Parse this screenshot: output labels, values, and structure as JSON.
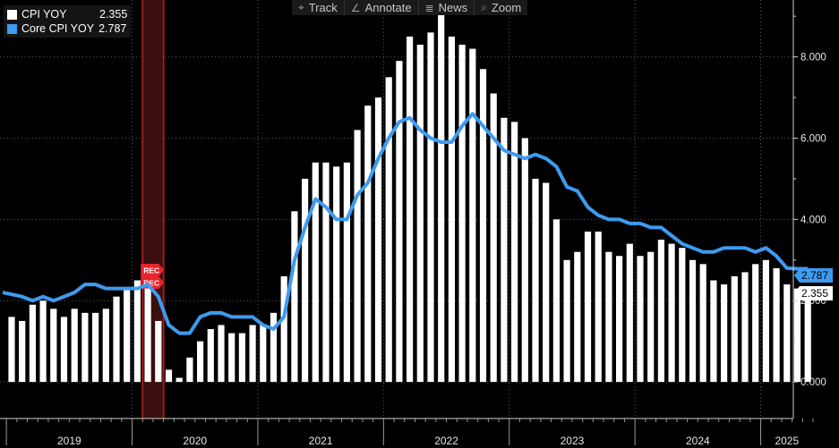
{
  "toolbar": {
    "items": [
      {
        "label": "Track",
        "icon": "crosshair-icon",
        "glyph": "⌖"
      },
      {
        "label": "Annotate",
        "icon": "pencil-icon",
        "glyph": "∠"
      },
      {
        "label": "News",
        "icon": "news-icon",
        "glyph": "≣"
      },
      {
        "label": "Zoom",
        "icon": "search-icon",
        "glyph": "⌕"
      }
    ]
  },
  "legend": [
    {
      "name": "CPI YOY",
      "value": "2.355",
      "color": "#ffffff"
    },
    {
      "name": "Core CPI YOY",
      "value": "2.787",
      "color": "#3d9bf0"
    }
  ],
  "recession": {
    "label": "REC",
    "color": "#e8242c"
  },
  "chart_data": {
    "type": "bar",
    "x": [
      "2019-01",
      "2019-02",
      "2019-03",
      "2019-04",
      "2019-05",
      "2019-06",
      "2019-07",
      "2019-08",
      "2019-09",
      "2019-10",
      "2019-11",
      "2019-12",
      "2020-01",
      "2020-02",
      "2020-03",
      "2020-04",
      "2020-05",
      "2020-06",
      "2020-07",
      "2020-08",
      "2020-09",
      "2020-10",
      "2020-11",
      "2020-12",
      "2021-01",
      "2021-02",
      "2021-03",
      "2021-04",
      "2021-05",
      "2021-06",
      "2021-07",
      "2021-08",
      "2021-09",
      "2021-10",
      "2021-11",
      "2021-12",
      "2022-01",
      "2022-02",
      "2022-03",
      "2022-04",
      "2022-05",
      "2022-06",
      "2022-07",
      "2022-08",
      "2022-09",
      "2022-10",
      "2022-11",
      "2022-12",
      "2023-01",
      "2023-02",
      "2023-03",
      "2023-04",
      "2023-05",
      "2023-06",
      "2023-07",
      "2023-08",
      "2023-09",
      "2023-10",
      "2023-11",
      "2023-12",
      "2024-01",
      "2024-02",
      "2024-03",
      "2024-04",
      "2024-05",
      "2024-06",
      "2024-07",
      "2024-08",
      "2024-09",
      "2024-10",
      "2024-11",
      "2024-12",
      "2025-01",
      "2025-02",
      "2025-03",
      "2025-04",
      "2025-05"
    ],
    "series": [
      {
        "name": "CPI YOY",
        "color": "#ffffff",
        "type": "bar",
        "values": [
          1.6,
          1.5,
          1.9,
          2.0,
          1.8,
          1.6,
          1.8,
          1.7,
          1.7,
          1.8,
          2.1,
          2.3,
          2.5,
          2.3,
          1.5,
          0.3,
          0.1,
          0.6,
          1.0,
          1.3,
          1.4,
          1.2,
          1.2,
          1.4,
          1.4,
          1.7,
          2.6,
          4.2,
          5.0,
          5.4,
          5.4,
          5.3,
          5.4,
          6.2,
          6.8,
          7.0,
          7.5,
          7.9,
          8.5,
          8.3,
          8.6,
          9.1,
          8.5,
          8.3,
          8.2,
          7.7,
          7.1,
          6.5,
          6.4,
          6.0,
          5.0,
          4.9,
          4.0,
          3.0,
          3.2,
          3.7,
          3.7,
          3.2,
          3.1,
          3.4,
          3.1,
          3.2,
          3.5,
          3.4,
          3.3,
          3.0,
          2.9,
          2.5,
          2.4,
          2.6,
          2.7,
          2.9,
          3.0,
          2.8,
          2.4,
          2.3,
          2.355
        ]
      },
      {
        "name": "Core CPI YOY",
        "color": "#3d9bf0",
        "type": "line",
        "values": [
          2.2,
          2.1,
          2.0,
          2.1,
          2.0,
          2.1,
          2.2,
          2.4,
          2.4,
          2.3,
          2.3,
          2.3,
          2.3,
          2.4,
          2.1,
          1.4,
          1.2,
          1.2,
          1.6,
          1.7,
          1.7,
          1.6,
          1.6,
          1.6,
          1.4,
          1.3,
          1.6,
          3.0,
          3.8,
          4.5,
          4.3,
          4.0,
          4.0,
          4.6,
          4.9,
          5.5,
          6.0,
          6.4,
          6.5,
          6.2,
          6.0,
          5.9,
          5.9,
          6.3,
          6.6,
          6.3,
          6.0,
          5.7,
          5.6,
          5.5,
          5.6,
          5.5,
          5.3,
          4.8,
          4.7,
          4.3,
          4.1,
          4.0,
          4.0,
          3.9,
          3.9,
          3.8,
          3.8,
          3.6,
          3.4,
          3.3,
          3.2,
          3.2,
          3.3,
          3.3,
          3.3,
          3.2,
          3.3,
          3.1,
          2.8,
          2.787,
          2.787
        ]
      }
    ],
    "ylim": [
      -0.9,
      9.4
    ],
    "yticks": [
      "0.000",
      "2.000",
      "4.000",
      "6.000",
      "8.000"
    ],
    "year_labels": [
      "2019",
      "2020",
      "2021",
      "2022",
      "2023",
      "2024",
      "2025"
    ],
    "last_value_labels": [
      "2.787",
      "2.355"
    ],
    "recession_shading": {
      "start": "2020-02",
      "end": "2020-04"
    },
    "grid": true,
    "legend_position": "top-left"
  }
}
